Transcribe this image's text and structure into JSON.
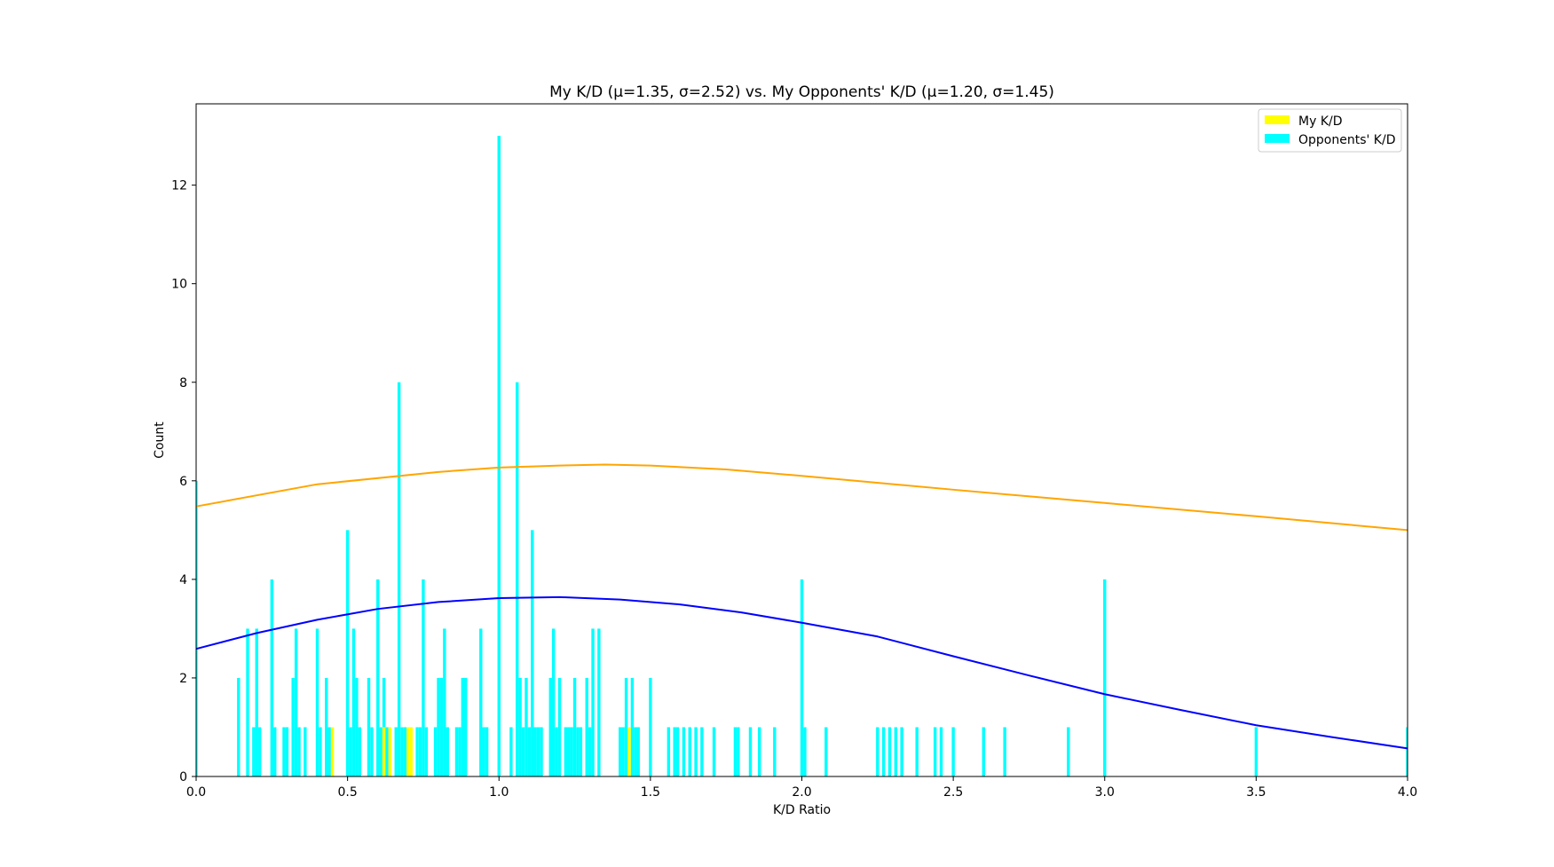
{
  "chart_data": {
    "type": "bar",
    "title": "My K/D (μ=1.35, σ=2.52) vs. My Opponents' K/D (μ=1.20, σ=1.45)",
    "xlabel": "K/D Ratio",
    "ylabel": "Count",
    "xlim": [
      0.0,
      4.0
    ],
    "ylim": [
      0,
      13.65
    ],
    "x_ticks": [
      "0.0",
      "0.5",
      "1.0",
      "1.5",
      "2.0",
      "2.5",
      "3.0",
      "3.5",
      "4.0"
    ],
    "y_ticks": [
      "0",
      "2",
      "4",
      "6",
      "8",
      "10",
      "12"
    ],
    "grid": false,
    "legend": {
      "position": "top-right",
      "entries": [
        "My K/D",
        "Opponents' K/D"
      ]
    },
    "series": [
      {
        "name": "My K/D",
        "color": "#ffff00",
        "bars": [
          {
            "x": 0.45,
            "y": 1
          },
          {
            "x": 0.62,
            "y": 1
          },
          {
            "x": 0.64,
            "y": 1
          },
          {
            "x": 0.7,
            "y": 1
          },
          {
            "x": 0.71,
            "y": 1
          },
          {
            "x": 1.43,
            "y": 1
          }
        ]
      },
      {
        "name": "Opponents' K/D",
        "color": "#00ffff",
        "bars": [
          {
            "x": 0.0,
            "y": 6
          },
          {
            "x": 0.14,
            "y": 2
          },
          {
            "x": 0.17,
            "y": 3
          },
          {
            "x": 0.19,
            "y": 1
          },
          {
            "x": 0.2,
            "y": 3
          },
          {
            "x": 0.21,
            "y": 1
          },
          {
            "x": 0.25,
            "y": 4
          },
          {
            "x": 0.26,
            "y": 1
          },
          {
            "x": 0.29,
            "y": 1
          },
          {
            "x": 0.3,
            "y": 1
          },
          {
            "x": 0.32,
            "y": 2
          },
          {
            "x": 0.33,
            "y": 3
          },
          {
            "x": 0.34,
            "y": 1
          },
          {
            "x": 0.36,
            "y": 1
          },
          {
            "x": 0.4,
            "y": 3
          },
          {
            "x": 0.41,
            "y": 1
          },
          {
            "x": 0.43,
            "y": 2
          },
          {
            "x": 0.44,
            "y": 1
          },
          {
            "x": 0.5,
            "y": 5
          },
          {
            "x": 0.51,
            "y": 1
          },
          {
            "x": 0.52,
            "y": 3
          },
          {
            "x": 0.53,
            "y": 2
          },
          {
            "x": 0.54,
            "y": 1
          },
          {
            "x": 0.57,
            "y": 2
          },
          {
            "x": 0.58,
            "y": 1
          },
          {
            "x": 0.6,
            "y": 4
          },
          {
            "x": 0.61,
            "y": 1
          },
          {
            "x": 0.62,
            "y": 2
          },
          {
            "x": 0.63,
            "y": 1
          },
          {
            "x": 0.66,
            "y": 1
          },
          {
            "x": 0.67,
            "y": 8
          },
          {
            "x": 0.68,
            "y": 1
          },
          {
            "x": 0.69,
            "y": 1
          },
          {
            "x": 0.73,
            "y": 1
          },
          {
            "x": 0.74,
            "y": 1
          },
          {
            "x": 0.75,
            "y": 4
          },
          {
            "x": 0.76,
            "y": 1
          },
          {
            "x": 0.79,
            "y": 1
          },
          {
            "x": 0.8,
            "y": 2
          },
          {
            "x": 0.81,
            "y": 2
          },
          {
            "x": 0.82,
            "y": 3
          },
          {
            "x": 0.83,
            "y": 1
          },
          {
            "x": 0.86,
            "y": 1
          },
          {
            "x": 0.87,
            "y": 1
          },
          {
            "x": 0.88,
            "y": 2
          },
          {
            "x": 0.89,
            "y": 2
          },
          {
            "x": 0.94,
            "y": 3
          },
          {
            "x": 0.95,
            "y": 1
          },
          {
            "x": 0.96,
            "y": 1
          },
          {
            "x": 1.0,
            "y": 13
          },
          {
            "x": 1.04,
            "y": 1
          },
          {
            "x": 1.06,
            "y": 8
          },
          {
            "x": 1.07,
            "y": 2
          },
          {
            "x": 1.08,
            "y": 1
          },
          {
            "x": 1.09,
            "y": 2
          },
          {
            "x": 1.1,
            "y": 1
          },
          {
            "x": 1.11,
            "y": 5
          },
          {
            "x": 1.12,
            "y": 1
          },
          {
            "x": 1.13,
            "y": 1
          },
          {
            "x": 1.14,
            "y": 1
          },
          {
            "x": 1.17,
            "y": 2
          },
          {
            "x": 1.18,
            "y": 3
          },
          {
            "x": 1.19,
            "y": 1
          },
          {
            "x": 1.2,
            "y": 2
          },
          {
            "x": 1.22,
            "y": 1
          },
          {
            "x": 1.23,
            "y": 1
          },
          {
            "x": 1.24,
            "y": 1
          },
          {
            "x": 1.25,
            "y": 2
          },
          {
            "x": 1.26,
            "y": 1
          },
          {
            "x": 1.27,
            "y": 1
          },
          {
            "x": 1.29,
            "y": 2
          },
          {
            "x": 1.3,
            "y": 1
          },
          {
            "x": 1.31,
            "y": 3
          },
          {
            "x": 1.33,
            "y": 3
          },
          {
            "x": 1.4,
            "y": 1
          },
          {
            "x": 1.41,
            "y": 1
          },
          {
            "x": 1.42,
            "y": 2
          },
          {
            "x": 1.44,
            "y": 2
          },
          {
            "x": 1.45,
            "y": 1
          },
          {
            "x": 1.46,
            "y": 1
          },
          {
            "x": 1.5,
            "y": 2
          },
          {
            "x": 1.56,
            "y": 1
          },
          {
            "x": 1.58,
            "y": 1
          },
          {
            "x": 1.59,
            "y": 1
          },
          {
            "x": 1.61,
            "y": 1
          },
          {
            "x": 1.63,
            "y": 1
          },
          {
            "x": 1.65,
            "y": 1
          },
          {
            "x": 1.67,
            "y": 1
          },
          {
            "x": 1.71,
            "y": 1
          },
          {
            "x": 1.78,
            "y": 1
          },
          {
            "x": 1.79,
            "y": 1
          },
          {
            "x": 1.83,
            "y": 1
          },
          {
            "x": 1.86,
            "y": 1
          },
          {
            "x": 1.91,
            "y": 1
          },
          {
            "x": 2.0,
            "y": 4
          },
          {
            "x": 2.01,
            "y": 1
          },
          {
            "x": 2.08,
            "y": 1
          },
          {
            "x": 2.25,
            "y": 1
          },
          {
            "x": 2.27,
            "y": 1
          },
          {
            "x": 2.29,
            "y": 1
          },
          {
            "x": 2.31,
            "y": 1
          },
          {
            "x": 2.33,
            "y": 1
          },
          {
            "x": 2.38,
            "y": 1
          },
          {
            "x": 2.44,
            "y": 1
          },
          {
            "x": 2.46,
            "y": 1
          },
          {
            "x": 2.5,
            "y": 1
          },
          {
            "x": 2.6,
            "y": 1
          },
          {
            "x": 2.67,
            "y": 1
          },
          {
            "x": 2.88,
            "y": 1
          },
          {
            "x": 3.0,
            "y": 4
          },
          {
            "x": 3.5,
            "y": 1
          },
          {
            "x": 4.0,
            "y": 1
          }
        ]
      }
    ],
    "curves": [
      {
        "color": "#ffa500",
        "points": [
          [
            0.0,
            5.48
          ],
          [
            0.4,
            5.93
          ],
          [
            0.8,
            6.18
          ],
          [
            1.0,
            6.27
          ],
          [
            1.2,
            6.31
          ],
          [
            1.35,
            6.33
          ],
          [
            1.5,
            6.31
          ],
          [
            1.75,
            6.23
          ],
          [
            2.0,
            6.1
          ],
          [
            2.5,
            5.82
          ],
          [
            3.0,
            5.55
          ],
          [
            3.5,
            5.28
          ],
          [
            4.0,
            5.0
          ]
        ]
      },
      {
        "color": "#0000ff",
        "points": [
          [
            0.0,
            2.59
          ],
          [
            0.2,
            2.91
          ],
          [
            0.4,
            3.18
          ],
          [
            0.6,
            3.4
          ],
          [
            0.8,
            3.54
          ],
          [
            1.0,
            3.62
          ],
          [
            1.2,
            3.64
          ],
          [
            1.4,
            3.59
          ],
          [
            1.6,
            3.49
          ],
          [
            1.8,
            3.33
          ],
          [
            2.0,
            3.12
          ],
          [
            2.25,
            2.84
          ],
          [
            2.5,
            2.44
          ],
          [
            2.75,
            2.05
          ],
          [
            3.0,
            1.67
          ],
          [
            3.25,
            1.35
          ],
          [
            3.5,
            1.04
          ],
          [
            3.75,
            0.8
          ],
          [
            4.0,
            0.57
          ]
        ]
      }
    ]
  }
}
